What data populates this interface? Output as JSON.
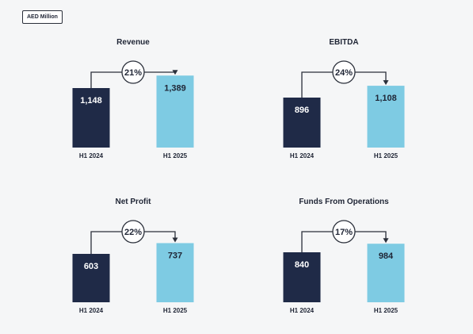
{
  "unit_label": "AED Million",
  "colors": {
    "prior": "#1f2a47",
    "current": "#7ecbe3",
    "text": "#1f2535",
    "connector": "#2a2f3a"
  },
  "chart_data": [
    {
      "type": "bar",
      "title": "Revenue",
      "categories": [
        "H1 2024",
        "H1 2025"
      ],
      "values": [
        1148,
        1389
      ],
      "value_labels": [
        "1,148",
        "1,389"
      ],
      "change_label": "21%"
    },
    {
      "type": "bar",
      "title": "EBITDA",
      "categories": [
        "H1 2024",
        "H1 2025"
      ],
      "values": [
        896,
        1108
      ],
      "value_labels": [
        "896",
        "1,108"
      ],
      "change_label": "24%"
    },
    {
      "type": "bar",
      "title": "Net Profit",
      "categories": [
        "H1 2024",
        "H1 2025"
      ],
      "values": [
        603,
        737
      ],
      "value_labels": [
        "603",
        "737"
      ],
      "change_label": "22%"
    },
    {
      "type": "bar",
      "title": "Funds From Operations",
      "categories": [
        "H1 2024",
        "H1 2025"
      ],
      "values": [
        840,
        984
      ],
      "value_labels": [
        "840",
        "984"
      ],
      "change_label": "17%"
    }
  ]
}
